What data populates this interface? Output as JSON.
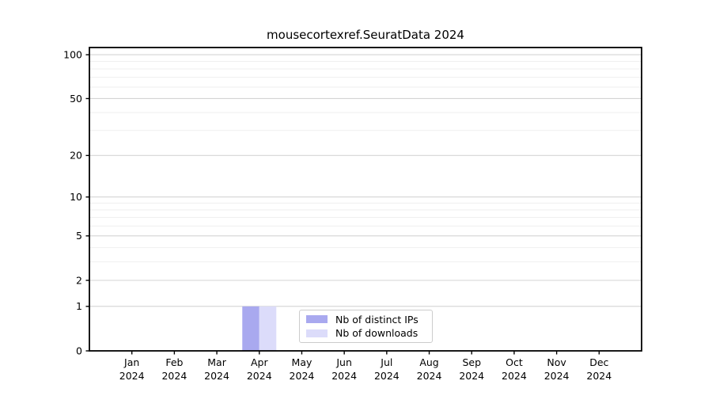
{
  "chart_data": {
    "type": "bar",
    "title": "mousecortexref.SeuratData 2024",
    "categories": [
      "Jan",
      "Feb",
      "Mar",
      "Apr",
      "May",
      "Jun",
      "Jul",
      "Aug",
      "Sep",
      "Oct",
      "Nov",
      "Dec"
    ],
    "x_year": "2024",
    "series": [
      {
        "name": "Nb of distinct IPs",
        "color": "#a9a9ef",
        "values": [
          0,
          0,
          0,
          1,
          0,
          0,
          0,
          0,
          0,
          0,
          0,
          0
        ]
      },
      {
        "name": "Nb of downloads",
        "color": "#dcdcfa",
        "values": [
          0,
          0,
          0,
          1,
          0,
          0,
          0,
          0,
          0,
          0,
          0,
          0
        ]
      }
    ],
    "yscale": "log1p",
    "ylim": [
      0,
      112
    ],
    "yticks": [
      0,
      1,
      2,
      5,
      10,
      20,
      50,
      100
    ],
    "minor_yticks": [
      3,
      4,
      6,
      7,
      8,
      9,
      30,
      40,
      60,
      70,
      80,
      90
    ],
    "grid": "horizontal",
    "legend_position": "lower-center-inside",
    "xlabel": "",
    "ylabel": "",
    "colors": {
      "axis": "#000000",
      "major_grid": "#d4d4d4",
      "minor_grid": "#efefef",
      "text": "#000000"
    }
  }
}
